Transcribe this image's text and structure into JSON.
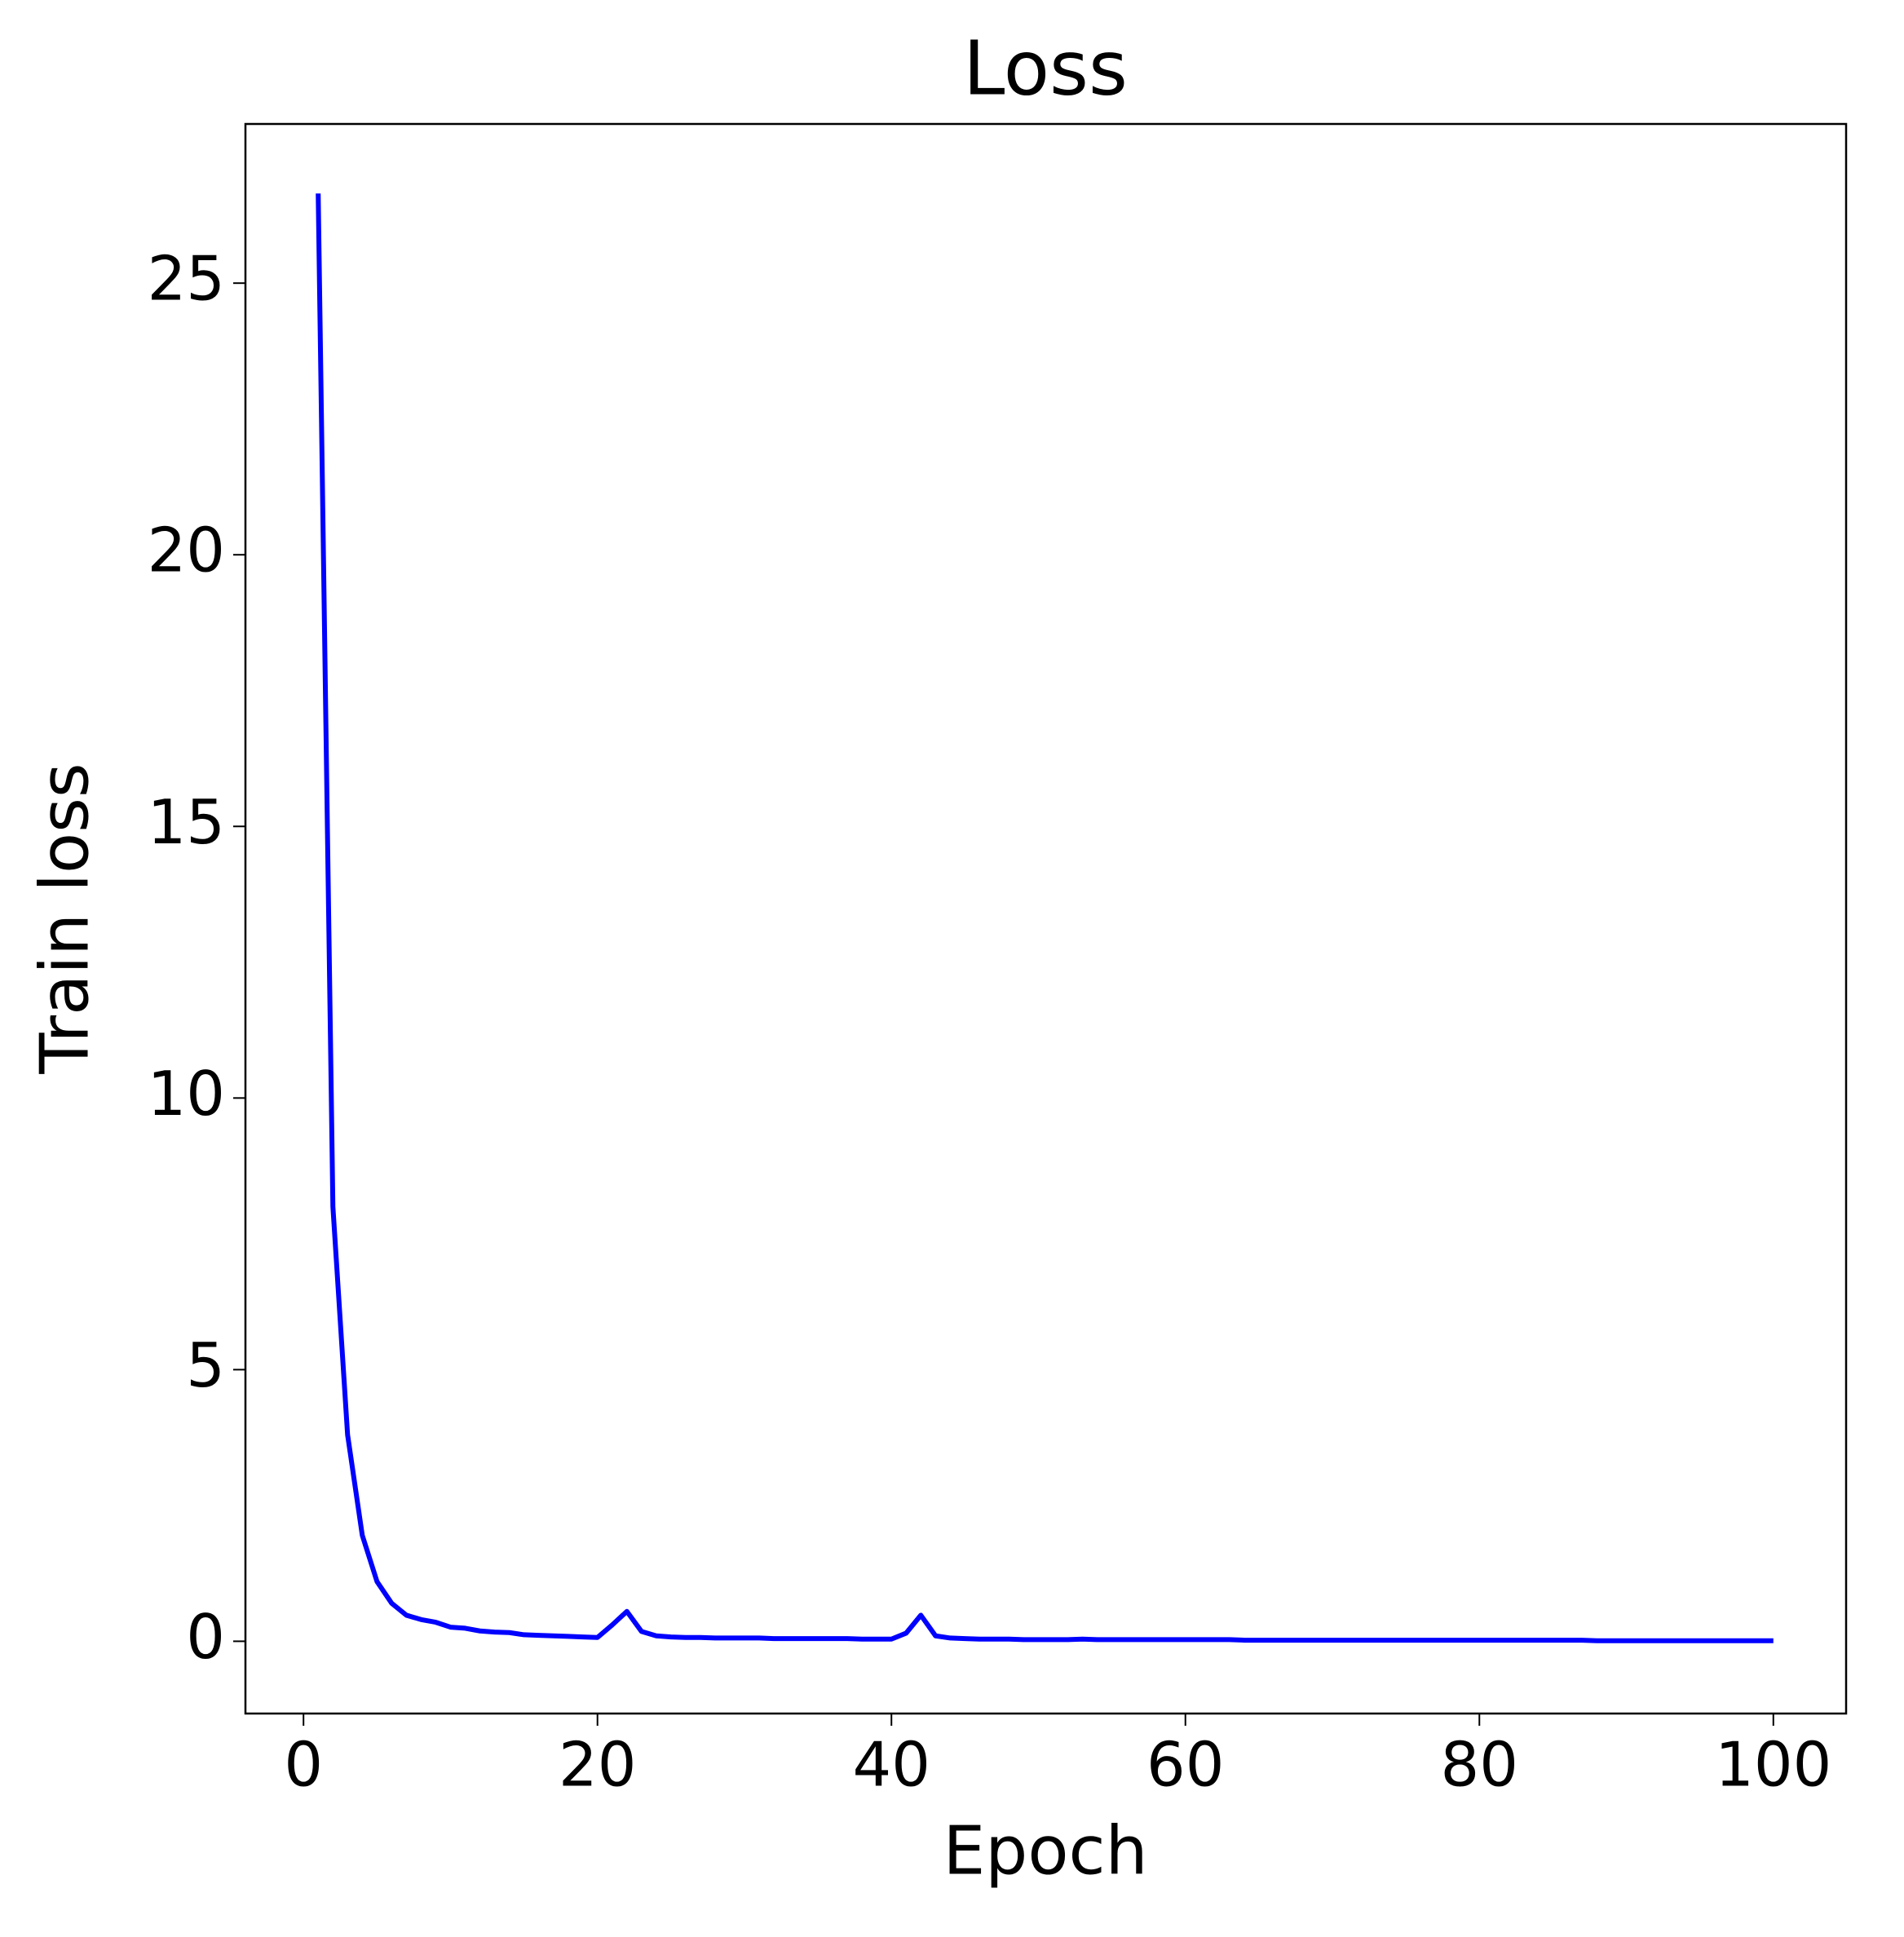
{
  "chart_data": {
    "type": "line",
    "title": "Loss",
    "x_label": "Epoch",
    "y_label": "Train loss",
    "x": [
      1,
      2,
      3,
      4,
      5,
      6,
      7,
      8,
      9,
      10,
      11,
      12,
      13,
      14,
      15,
      16,
      17,
      18,
      19,
      20,
      21,
      22,
      23,
      24,
      25,
      26,
      27,
      28,
      29,
      30,
      31,
      32,
      33,
      34,
      35,
      36,
      37,
      38,
      39,
      40,
      41,
      42,
      43,
      44,
      45,
      46,
      47,
      48,
      49,
      50,
      51,
      52,
      53,
      54,
      55,
      56,
      57,
      58,
      59,
      60,
      61,
      62,
      63,
      64,
      65,
      66,
      67,
      68,
      69,
      70,
      71,
      72,
      73,
      74,
      75,
      76,
      77,
      78,
      79,
      80,
      81,
      82,
      83,
      84,
      85,
      86,
      87,
      88,
      89,
      90,
      91,
      92,
      93,
      94,
      95,
      96,
      97,
      98,
      99,
      100
    ],
    "series": [
      {
        "name": "Train loss",
        "color": "#0000ff",
        "values": [
          26.65,
          8.0,
          3.8,
          1.95,
          1.1,
          0.7,
          0.48,
          0.4,
          0.35,
          0.26,
          0.24,
          0.19,
          0.17,
          0.16,
          0.12,
          0.11,
          0.1,
          0.09,
          0.08,
          0.07,
          0.3,
          0.55,
          0.18,
          0.1,
          0.08,
          0.07,
          0.07,
          0.06,
          0.06,
          0.06,
          0.06,
          0.05,
          0.05,
          0.05,
          0.05,
          0.05,
          0.05,
          0.04,
          0.04,
          0.04,
          0.15,
          0.48,
          0.1,
          0.06,
          0.05,
          0.04,
          0.04,
          0.04,
          0.03,
          0.03,
          0.03,
          0.03,
          0.04,
          0.03,
          0.03,
          0.03,
          0.03,
          0.03,
          0.03,
          0.03,
          0.03,
          0.03,
          0.03,
          0.02,
          0.02,
          0.02,
          0.02,
          0.02,
          0.02,
          0.02,
          0.02,
          0.02,
          0.02,
          0.02,
          0.02,
          0.02,
          0.02,
          0.02,
          0.02,
          0.02,
          0.02,
          0.02,
          0.02,
          0.02,
          0.02,
          0.02,
          0.02,
          0.01,
          0.01,
          0.01,
          0.01,
          0.01,
          0.01,
          0.01,
          0.01,
          0.01,
          0.01,
          0.01,
          0.01,
          0.01
        ]
      }
    ],
    "xlim": [
      -3.95,
      104.95
    ],
    "xticks": [
      0,
      20,
      40,
      60,
      80,
      100
    ],
    "ylim": [
      -1.33,
      27.93
    ],
    "yticks": [
      0,
      5,
      10,
      15,
      20,
      25
    ],
    "grid": false
  }
}
